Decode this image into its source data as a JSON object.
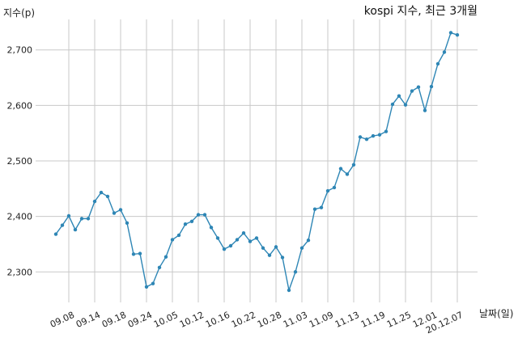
{
  "chart_data": {
    "type": "line",
    "title": "kospi 지수, 최근 3개월",
    "ylabel": "지수(p)",
    "xlabel": "날짜(일)",
    "ylim": [
      2245,
      2755
    ],
    "yticks": [
      2300,
      2400,
      2500,
      2600,
      2700
    ],
    "ytick_labels": [
      "2,300",
      "2,400",
      "2,500",
      "2,600",
      "2,700"
    ],
    "grid": true,
    "line_color": "#2e86b5",
    "x_tick_labels": [
      "09.08",
      "09.14",
      "09.18",
      "09.24",
      "10.05",
      "10.12",
      "10.16",
      "10.22",
      "10.28",
      "11.03",
      "11.09",
      "11.13",
      "11.19",
      "11.25",
      "12.01",
      "20.12.07"
    ],
    "x_tick_index": [
      2,
      6,
      10,
      14,
      18,
      22,
      26,
      30,
      34,
      38,
      42,
      46,
      50,
      54,
      58,
      62
    ],
    "series": [
      {
        "values": [
          2368,
          2384,
          2401,
          2376,
          2396,
          2396,
          2427,
          2443,
          2436,
          2406,
          2412,
          2388,
          2332,
          2333,
          2273,
          2279,
          2308,
          2327,
          2358,
          2366,
          2386,
          2391,
          2403,
          2403,
          2380,
          2361,
          2341,
          2347,
          2358,
          2370,
          2355,
          2361,
          2343,
          2330,
          2345,
          2326,
          2267,
          2300,
          2343,
          2357,
          2413,
          2416,
          2446,
          2452,
          2486,
          2476,
          2493,
          2543,
          2539,
          2545,
          2547,
          2553,
          2602,
          2617,
          2601,
          2626,
          2633,
          2591,
          2634,
          2675,
          2696,
          2731,
          2727
        ]
      }
    ]
  }
}
